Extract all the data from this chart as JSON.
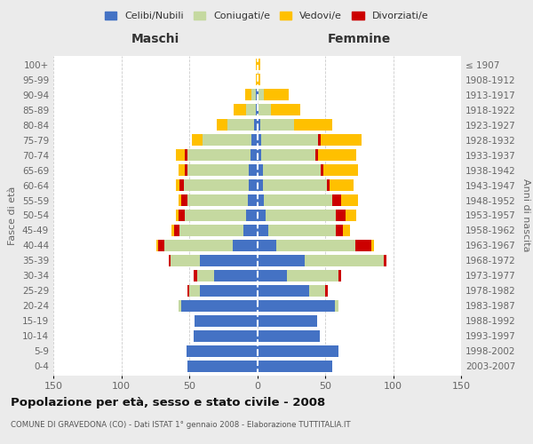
{
  "age_groups": [
    "0-4",
    "5-9",
    "10-14",
    "15-19",
    "20-24",
    "25-29",
    "30-34",
    "35-39",
    "40-44",
    "45-49",
    "50-54",
    "55-59",
    "60-64",
    "65-69",
    "70-74",
    "75-79",
    "80-84",
    "85-89",
    "90-94",
    "95-99",
    "100+"
  ],
  "birth_years": [
    "2003-2007",
    "1998-2002",
    "1993-1997",
    "1988-1992",
    "1983-1987",
    "1978-1982",
    "1973-1977",
    "1968-1972",
    "1963-1967",
    "1958-1962",
    "1953-1957",
    "1948-1952",
    "1943-1947",
    "1938-1942",
    "1933-1937",
    "1928-1932",
    "1923-1927",
    "1918-1922",
    "1913-1917",
    "1908-1912",
    "≤ 1907"
  ],
  "colors": {
    "celibi": "#4472C4",
    "coniugati": "#C5D9A0",
    "vedovi": "#FFC000",
    "divorziati": "#CC0000"
  },
  "maschi": {
    "celibi": [
      51,
      52,
      47,
      46,
      56,
      42,
      32,
      42,
      18,
      10,
      8,
      7,
      6,
      6,
      5,
      4,
      2,
      1,
      1,
      0,
      0
    ],
    "coniugati": [
      0,
      0,
      0,
      0,
      2,
      8,
      12,
      22,
      50,
      47,
      45,
      44,
      48,
      45,
      46,
      36,
      20,
      7,
      3,
      0,
      0
    ],
    "vedovi": [
      0,
      0,
      0,
      0,
      0,
      0,
      0,
      0,
      1,
      2,
      2,
      2,
      3,
      5,
      7,
      8,
      8,
      9,
      5,
      1,
      1
    ],
    "divorziati": [
      0,
      0,
      0,
      0,
      0,
      1,
      3,
      1,
      5,
      4,
      5,
      5,
      3,
      2,
      2,
      0,
      0,
      0,
      0,
      0,
      0
    ]
  },
  "femmine": {
    "celibi": [
      55,
      60,
      46,
      44,
      57,
      38,
      22,
      35,
      14,
      8,
      6,
      5,
      4,
      4,
      3,
      3,
      2,
      1,
      1,
      0,
      0
    ],
    "coniugati": [
      0,
      0,
      0,
      0,
      3,
      12,
      38,
      58,
      58,
      50,
      52,
      50,
      47,
      43,
      40,
      42,
      25,
      9,
      4,
      0,
      0
    ],
    "vedovi": [
      0,
      0,
      0,
      0,
      0,
      0,
      0,
      0,
      2,
      5,
      8,
      12,
      18,
      25,
      28,
      30,
      28,
      22,
      18,
      2,
      2
    ],
    "divorziati": [
      0,
      0,
      0,
      0,
      0,
      2,
      2,
      2,
      12,
      5,
      7,
      7,
      2,
      2,
      2,
      2,
      0,
      0,
      0,
      0,
      0
    ]
  },
  "xlim": 150,
  "title": "Popolazione per età, sesso e stato civile - 2008",
  "subtitle": "COMUNE DI GRAVEDONA (CO) - Dati ISTAT 1° gennaio 2008 - Elaborazione TUTTITALIA.IT",
  "ylabel_left": "Fasce di età",
  "ylabel_right": "Anni di nascita",
  "xlabel_maschi": "Maschi",
  "xlabel_femmine": "Femmine",
  "legend_labels": [
    "Celibi/Nubili",
    "Coniugati/e",
    "Vedovi/e",
    "Divorziati/e"
  ],
  "background_color": "#ebebeb",
  "plot_background": "#ffffff"
}
